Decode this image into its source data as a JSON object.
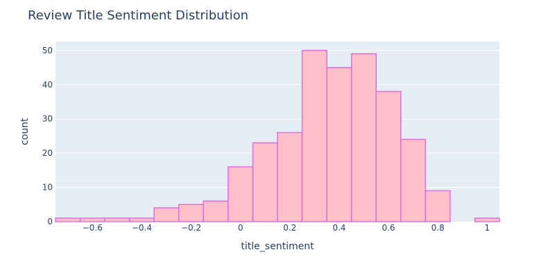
{
  "chart_data": {
    "type": "bar",
    "title": "Review Title Sentiment Distribution",
    "xlabel": "title_sentiment",
    "ylabel": "count",
    "bin_width": 0.1,
    "bins": [
      {
        "x0": -0.75,
        "x1": -0.65,
        "count": 1
      },
      {
        "x0": -0.65,
        "x1": -0.55,
        "count": 1
      },
      {
        "x0": -0.55,
        "x1": -0.45,
        "count": 1
      },
      {
        "x0": -0.45,
        "x1": -0.35,
        "count": 1
      },
      {
        "x0": -0.35,
        "x1": -0.25,
        "count": 4
      },
      {
        "x0": -0.25,
        "x1": -0.15,
        "count": 5
      },
      {
        "x0": -0.15,
        "x1": -0.05,
        "count": 6
      },
      {
        "x0": -0.05,
        "x1": 0.05,
        "count": 16
      },
      {
        "x0": 0.05,
        "x1": 0.15,
        "count": 23
      },
      {
        "x0": 0.15,
        "x1": 0.25,
        "count": 26
      },
      {
        "x0": 0.25,
        "x1": 0.35,
        "count": 50
      },
      {
        "x0": 0.35,
        "x1": 0.45,
        "count": 45
      },
      {
        "x0": 0.45,
        "x1": 0.55,
        "count": 49
      },
      {
        "x0": 0.55,
        "x1": 0.65,
        "count": 38
      },
      {
        "x0": 0.65,
        "x1": 0.75,
        "count": 24
      },
      {
        "x0": 0.75,
        "x1": 0.85,
        "count": 9
      },
      {
        "x0": 0.85,
        "x1": 0.95,
        "count": 0
      },
      {
        "x0": 0.95,
        "x1": 1.05,
        "count": 1
      }
    ],
    "xlim": [
      -0.75,
      1.05
    ],
    "ylim": [
      0,
      52.6
    ],
    "xticks": [
      {
        "value": -0.6,
        "label": "−0.6"
      },
      {
        "value": -0.4,
        "label": "−0.4"
      },
      {
        "value": -0.2,
        "label": "−0.2"
      },
      {
        "value": 0,
        "label": "0"
      },
      {
        "value": 0.2,
        "label": "0.2"
      },
      {
        "value": 0.4,
        "label": "0.4"
      },
      {
        "value": 0.6,
        "label": "0.6"
      },
      {
        "value": 0.8,
        "label": "0.8"
      },
      {
        "value": 1,
        "label": "1"
      }
    ],
    "yticks": [
      {
        "value": 0,
        "label": "0"
      },
      {
        "value": 10,
        "label": "10"
      },
      {
        "value": 20,
        "label": "20"
      },
      {
        "value": 30,
        "label": "30"
      },
      {
        "value": 40,
        "label": "40"
      },
      {
        "value": 50,
        "label": "50"
      }
    ],
    "grid": true,
    "colors": {
      "plot_background": "#e5ecf6",
      "grid": "#ffffff",
      "bar_fill": "#ffc0cb",
      "bar_outline": "#da70d6",
      "text": "#2a3f5f"
    }
  }
}
